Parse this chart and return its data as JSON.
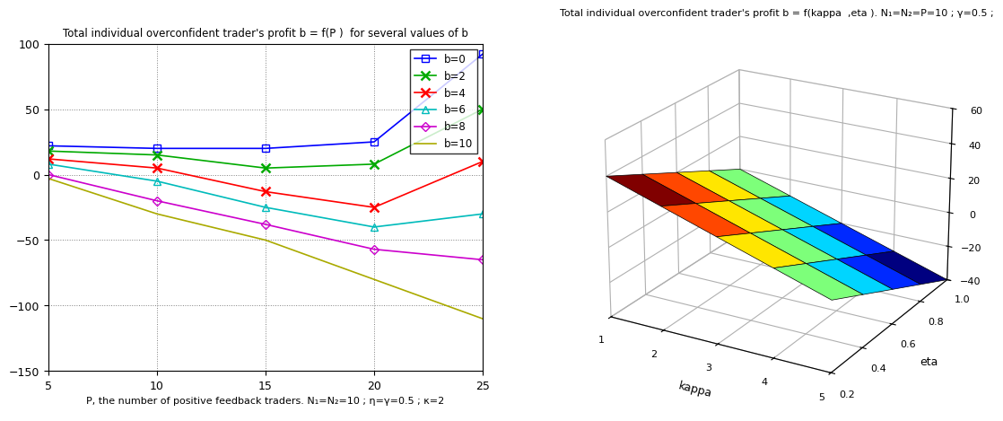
{
  "left_title": "Total individual overconfident trader's profit b = f(P )  for several values of b",
  "left_xlabel": "P, the number of positive feedback traders. N₁=N₂=10 ; η=γ=0.5 ; κ=2",
  "left_xlim": [
    5,
    25
  ],
  "left_ylim": [
    -150,
    100
  ],
  "left_xticks": [
    5,
    10,
    15,
    20,
    25
  ],
  "left_yticks": [
    -150,
    -100,
    -50,
    0,
    50,
    100
  ],
  "x_values": [
    5,
    10,
    15,
    20,
    25
  ],
  "series": [
    {
      "label": "b=0",
      "color": "#0000FF",
      "marker": "s",
      "y": [
        22,
        20,
        20,
        25,
        92
      ]
    },
    {
      "label": "b=2",
      "color": "#00AA00",
      "marker": "x",
      "y": [
        18,
        15,
        5,
        8,
        50
      ]
    },
    {
      "label": "b=4",
      "color": "#FF0000",
      "marker": "x",
      "y": [
        12,
        5,
        -13,
        -25,
        10
      ]
    },
    {
      "label": "b=6",
      "color": "#00BBBB",
      "marker": "^",
      "y": [
        8,
        -5,
        -25,
        -40,
        -30
      ]
    },
    {
      "label": "b=8",
      "color": "#CC00CC",
      "marker": "D",
      "y": [
        0,
        -20,
        -38,
        -57,
        -65
      ]
    },
    {
      "label": "b=10",
      "color": "#AAAA00",
      "marker": "none",
      "y": [
        -3,
        -30,
        -50,
        -80,
        -110
      ]
    }
  ],
  "right_title": "Total individual overconfident trader's profit b = f(kappa  ,eta ). N₁=N₂=P=10 ; γ=0.5 ;",
  "right_xlabel": "eta",
  "right_ylabel": "kappa",
  "kappa_values": [
    1,
    2,
    3,
    4,
    5
  ],
  "eta_values": [
    0.2,
    0.4,
    0.6,
    0.8,
    1.0
  ],
  "z_data": [
    [
      40,
      30,
      20,
      10,
      0
    ],
    [
      30,
      20,
      10,
      0,
      -10
    ],
    [
      20,
      10,
      0,
      -10,
      -20
    ],
    [
      10,
      0,
      -10,
      -20,
      -30
    ],
    [
      0,
      -10,
      -20,
      -30,
      -40
    ]
  ],
  "surf_zlim": [
    -40,
    60
  ],
  "surf_zticks": [
    -40,
    -20,
    0,
    20,
    40,
    60
  ],
  "bg_color": "#FFFFFF"
}
